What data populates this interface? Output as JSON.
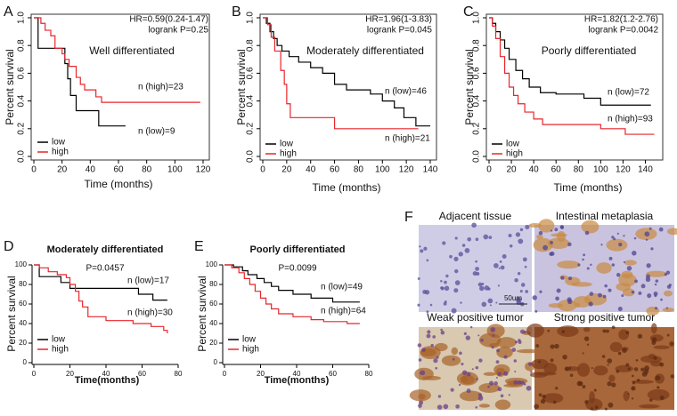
{
  "chart_data": [
    {
      "type": "km",
      "panel": "A",
      "title": "Well differentiated",
      "hr": "HR=0.59(0.24-1.47)",
      "p_value": "logrank P=0.25",
      "xlabel": "Time (months)",
      "ylabel": "Percent survival",
      "xlim": [
        0,
        120
      ],
      "ylim": [
        0,
        1
      ],
      "xticks": [
        0,
        20,
        40,
        60,
        80,
        100,
        120
      ],
      "yticks": [
        {
          "value": 0,
          "label": "0.0"
        },
        0.2,
        0.4,
        0.6,
        0.8,
        {
          "value": 1,
          "label": "1.0"
        }
      ],
      "annotations": [
        "n (high)=23",
        "n (low)=9"
      ],
      "series": [
        {
          "name": "low",
          "color": "#000000",
          "x": [
            0,
            3,
            22,
            24,
            26,
            30,
            46,
            65
          ],
          "values": [
            1,
            0.78,
            0.67,
            0.56,
            0.44,
            0.33,
            0.22,
            0.22
          ]
        },
        {
          "name": "high",
          "color": "#e8262b",
          "x": [
            0,
            5,
            8,
            12,
            15,
            20,
            22,
            25,
            30,
            33,
            36,
            44,
            48,
            118
          ],
          "values": [
            1,
            0.96,
            0.91,
            0.87,
            0.78,
            0.74,
            0.7,
            0.65,
            0.57,
            0.52,
            0.48,
            0.43,
            0.39,
            0.39
          ]
        }
      ]
    },
    {
      "type": "km",
      "panel": "B",
      "title": "Moderately differentiated",
      "hr": "HR=1.96(1-3.83)",
      "p_value": "logrank P=0.045",
      "xlabel": "Time (months)",
      "ylabel": "Percent survival",
      "xlim": [
        0,
        140
      ],
      "ylim": [
        0,
        1
      ],
      "xticks": [
        0,
        20,
        40,
        60,
        80,
        100,
        120,
        140
      ],
      "yticks": [
        {
          "value": 0,
          "label": "0.0"
        },
        0.2,
        0.4,
        0.6,
        0.8,
        {
          "value": 1,
          "label": "1.0"
        }
      ],
      "annotations": [
        "n (low)=46",
        "n (high)=21"
      ],
      "series": [
        {
          "name": "low",
          "color": "#000000",
          "x": [
            0,
            3,
            6,
            9,
            12,
            16,
            22,
            30,
            40,
            50,
            60,
            70,
            90,
            100,
            110,
            118,
            128,
            140
          ],
          "values": [
            1,
            0.96,
            0.9,
            0.85,
            0.8,
            0.76,
            0.72,
            0.68,
            0.64,
            0.6,
            0.52,
            0.48,
            0.45,
            0.4,
            0.35,
            0.28,
            0.22,
            0.22
          ]
        },
        {
          "name": "high",
          "color": "#e8262b",
          "x": [
            0,
            4,
            7,
            10,
            15,
            18,
            20,
            23,
            60,
            130
          ],
          "values": [
            1,
            0.95,
            0.86,
            0.76,
            0.62,
            0.52,
            0.38,
            0.28,
            0.2,
            0.2
          ]
        }
      ]
    },
    {
      "type": "km",
      "panel": "C",
      "title": "Poorly differentiated",
      "hr": "HR=1.82(1.2-2.76)",
      "p_value": "logrank P=0.0042",
      "xlabel": "Time (months)",
      "ylabel": "Percent survival",
      "xlim": [
        0,
        150
      ],
      "ylim": [
        0,
        1
      ],
      "xticks": [
        0,
        20,
        40,
        60,
        80,
        100,
        120,
        140
      ],
      "yticks": [
        {
          "value": 0,
          "label": "0.0"
        },
        0.2,
        0.4,
        0.6,
        0.8,
        {
          "value": 1,
          "label": "1.0"
        }
      ],
      "annotations": [
        "n (low)=72",
        "n (high)=93"
      ],
      "series": [
        {
          "name": "low",
          "color": "#000000",
          "x": [
            0,
            3,
            6,
            10,
            14,
            18,
            24,
            30,
            36,
            46,
            60,
            85,
            100,
            145
          ],
          "values": [
            1,
            0.96,
            0.9,
            0.84,
            0.78,
            0.7,
            0.62,
            0.56,
            0.5,
            0.46,
            0.45,
            0.42,
            0.37,
            0.37
          ]
        },
        {
          "name": "high",
          "color": "#e8262b",
          "x": [
            0,
            3,
            6,
            10,
            14,
            18,
            22,
            26,
            32,
            40,
            48,
            100,
            122,
            148
          ],
          "values": [
            1,
            0.94,
            0.85,
            0.72,
            0.6,
            0.5,
            0.44,
            0.38,
            0.32,
            0.27,
            0.23,
            0.2,
            0.16,
            0.16
          ]
        }
      ]
    },
    {
      "type": "km",
      "panel": "D",
      "title": "Moderately differentiated",
      "p_value": "P=0.0457",
      "xlabel": "Time(months)",
      "ylabel": "Percent survival",
      "xlim": [
        0,
        80
      ],
      "ylim": [
        0,
        100
      ],
      "xticks": [
        0,
        20,
        40,
        60,
        80
      ],
      "yticks": [
        0,
        20,
        40,
        60,
        80,
        100
      ],
      "annotations": [
        "n (low)=17",
        "n (high)=30"
      ],
      "series": [
        {
          "name": "low",
          "color": "#000000",
          "x": [
            0,
            3,
            15,
            20,
            58,
            66,
            74
          ],
          "values": [
            100,
            88,
            82,
            76,
            70,
            64,
            64
          ]
        },
        {
          "name": "high",
          "color": "#e8262b",
          "x": [
            0,
            3,
            8,
            13,
            18,
            20,
            23,
            25,
            27,
            30,
            40,
            55,
            65,
            72,
            74
          ],
          "values": [
            100,
            97,
            93,
            90,
            87,
            80,
            73,
            63,
            57,
            47,
            43,
            40,
            37,
            33,
            30
          ]
        }
      ]
    },
    {
      "type": "km",
      "panel": "E",
      "title": "Poorly differentiated",
      "p_value": "P=0.0099",
      "xlabel": "Time(months)",
      "ylabel": "Percent survival",
      "xlim": [
        0,
        80
      ],
      "ylim": [
        0,
        100
      ],
      "xticks": [
        0,
        20,
        40,
        60,
        80
      ],
      "yticks": [
        0,
        20,
        40,
        60,
        80,
        100
      ],
      "annotations": [
        "n (low)=49",
        "n (high)=64"
      ],
      "series": [
        {
          "name": "low",
          "color": "#000000",
          "x": [
            0,
            5,
            10,
            13,
            18,
            22,
            26,
            30,
            38,
            48,
            60,
            75
          ],
          "values": [
            100,
            98,
            94,
            90,
            86,
            82,
            78,
            74,
            70,
            66,
            62,
            62
          ]
        },
        {
          "name": "high",
          "color": "#e8262b",
          "x": [
            0,
            4,
            8,
            11,
            14,
            17,
            20,
            23,
            26,
            30,
            38,
            48,
            55,
            68,
            75
          ],
          "values": [
            100,
            97,
            92,
            86,
            80,
            73,
            66,
            60,
            55,
            50,
            47,
            44,
            42,
            40,
            40
          ]
        }
      ]
    }
  ],
  "figure_panel": {
    "letter": "F",
    "scale_bar": "50um",
    "images": [
      {
        "label": "Adjacent tissue"
      },
      {
        "label": "Intestinal metaplasia"
      },
      {
        "label": "Weak positive tumor"
      },
      {
        "label": "Strong positive tumor"
      }
    ]
  }
}
